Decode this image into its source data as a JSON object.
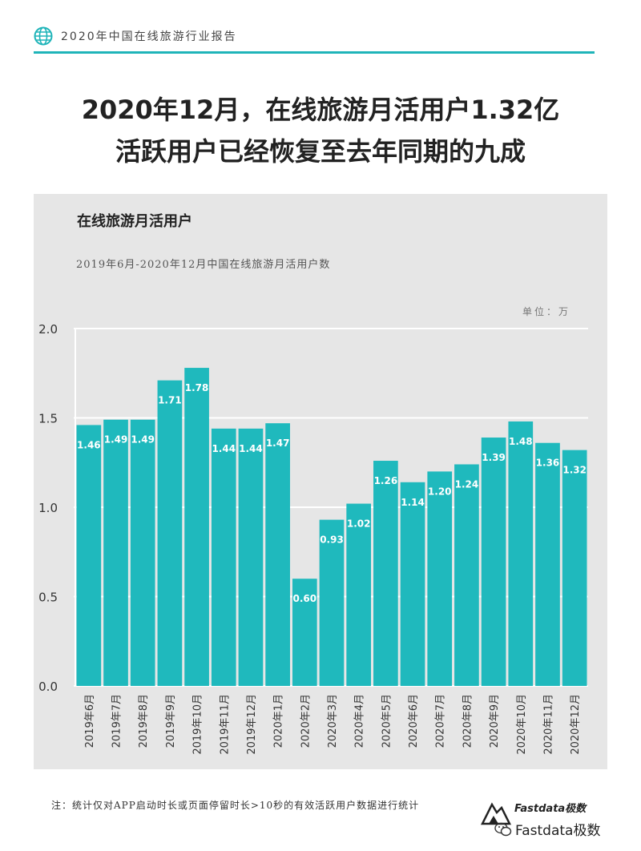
{
  "header": {
    "text": "2020年中国在线旅游行业报告",
    "accent": "#1fb4b9"
  },
  "title": {
    "line1": "2020年12月，在线旅游月活用户1.32亿",
    "line2": "活跃用户已经恢复至去年同期的九成"
  },
  "chart_data": {
    "type": "bar",
    "title": "在线旅游月活用户",
    "subtitle": "2019年6月-2020年12月中国在线旅游月活用户数",
    "unit_label": "单位：万",
    "categories": [
      "2019年6月",
      "2019年7月",
      "2019年8月",
      "2019年9月",
      "2019年10月",
      "2019年11月",
      "2019年12月",
      "2020年1月",
      "2020年2月",
      "2020年3月",
      "2020年4月",
      "2020年5月",
      "2020年6月",
      "2020年7月",
      "2020年8月",
      "2020年9月",
      "2020年10月",
      "2020年11月",
      "2020年12月"
    ],
    "values": [
      1.46,
      1.49,
      1.49,
      1.71,
      1.78,
      1.44,
      1.44,
      1.47,
      0.6,
      0.93,
      1.02,
      1.26,
      1.14,
      1.2,
      1.24,
      1.39,
      1.48,
      1.36,
      1.32
    ],
    "value_labels": [
      "1.46",
      "1.49",
      "1.49",
      "1.71",
      "1.78",
      "1.44",
      "1.44",
      "1.47",
      "0.60",
      "0.93",
      "1.02",
      "1.26",
      "1.14",
      "1.20",
      "1.24",
      "1.39",
      "1.48",
      "1.36",
      "1.32"
    ],
    "yticks": [
      "0.0",
      "0.5",
      "1.0",
      "1.5",
      "2.0"
    ],
    "ylim": [
      0,
      2.0
    ],
    "grid": true,
    "bar_color": "#1fb9bd",
    "panel_color": "#e6e6e6"
  },
  "footer": {
    "note": "注：统计仅对APP启动时长或页面停留时长>10秒的有效活跃用户数据进行统计",
    "brand_small": "Fastdata极数",
    "wechat_label": "Fastdata极数"
  }
}
